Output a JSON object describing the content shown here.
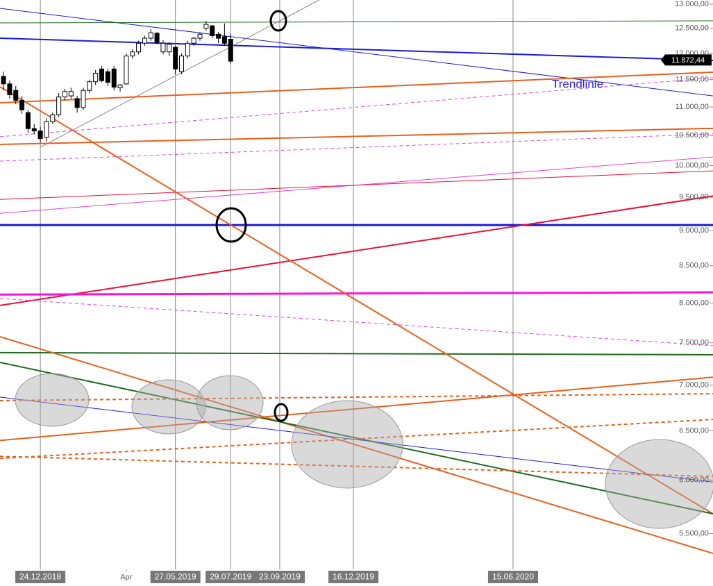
{
  "chart_data": {
    "type": "candlestick",
    "log_scale": true,
    "annotation": "Trendlinie",
    "last_price": {
      "value": 11872.44,
      "label": "11.872,44"
    },
    "xlim": [
      "2018-11-08",
      "2021-01-29"
    ],
    "ylim": [
      5190,
      13088
    ],
    "yticks": [
      {
        "value": 5500,
        "label": "5.500,00"
      },
      {
        "value": 6000,
        "label": "6.000,00"
      },
      {
        "value": 6500,
        "label": "6.500,00"
      },
      {
        "value": 7000,
        "label": "7.000,00"
      },
      {
        "value": 7500,
        "label": "7.500,00"
      },
      {
        "value": 8000,
        "label": "8.000,00"
      },
      {
        "value": 8500,
        "label": "8.500,00"
      },
      {
        "value": 9000,
        "label": "9.000,00"
      },
      {
        "value": 9500,
        "label": "9.500,00"
      },
      {
        "value": 10000,
        "label": "10.000,00"
      },
      {
        "value": 10500,
        "label": "10.500,00"
      },
      {
        "value": 11000,
        "label": "11.000,00"
      },
      {
        "value": 11500,
        "label": "11.500,00"
      },
      {
        "value": 12000,
        "label": "12.000,00"
      },
      {
        "value": 12500,
        "label": "12.500,00"
      },
      {
        "value": 13000,
        "label": "13.000,00"
      }
    ],
    "xticks": [
      {
        "value": "2018-12-24",
        "label": "24.12.2018"
      },
      {
        "value": "2019-05-27",
        "label": "27.05.2019"
      },
      {
        "value": "2019-07-29",
        "label": "29.07.2019"
      },
      {
        "value": "2019-09-23",
        "label": "23.09.2019"
      },
      {
        "value": "2019-12-16",
        "label": "16.12.2019"
      },
      {
        "value": "2020-06-15",
        "label": "15.06.2020"
      }
    ],
    "xticks_minor": [
      {
        "value": "2019-04-01",
        "label": "Apr"
      }
    ],
    "x": [
      "2018-11-12",
      "2018-11-19",
      "2018-11-26",
      "2018-12-03",
      "2018-12-10",
      "2018-12-17",
      "2018-12-24",
      "2018-12-31",
      "2019-01-07",
      "2019-01-14",
      "2019-01-21",
      "2019-01-28",
      "2019-02-04",
      "2019-02-11",
      "2019-02-18",
      "2019-02-25",
      "2019-03-04",
      "2019-03-11",
      "2019-03-18",
      "2019-03-25",
      "2019-04-01",
      "2019-04-08",
      "2019-04-15",
      "2019-04-22",
      "2019-04-29",
      "2019-05-06",
      "2019-05-13",
      "2019-05-20",
      "2019-05-27",
      "2019-06-03",
      "2019-06-10",
      "2019-06-17",
      "2019-06-24",
      "2019-07-01",
      "2019-07-08",
      "2019-07-15",
      "2019-07-22",
      "2019-07-29"
    ],
    "open": [
      11560,
      11420,
      11300,
      11120,
      10900,
      10620,
      10580,
      10470,
      10740,
      10860,
      11180,
      11200,
      11150,
      10990,
      11300,
      11460,
      11700,
      11650,
      11700,
      11350,
      11420,
      11950,
      12030,
      12200,
      12300,
      12400,
      12030,
      12030,
      12120,
      11650,
      11950,
      12200,
      12300,
      12500,
      12550,
      12380,
      12330,
      12280
    ],
    "high": [
      11650,
      11480,
      11380,
      11200,
      10950,
      10700,
      10650,
      10800,
      10900,
      11250,
      11330,
      11350,
      11200,
      11350,
      11500,
      11680,
      11760,
      11700,
      11760,
      11420,
      12000,
      12080,
      12250,
      12350,
      12480,
      12420,
      12260,
      12220,
      12150,
      12000,
      12250,
      12330,
      12420,
      12650,
      12570,
      12420,
      12600,
      12400
    ],
    "low": [
      11300,
      11150,
      11050,
      10880,
      10550,
      10520,
      10380,
      10400,
      10700,
      10820,
      11120,
      11150,
      10900,
      10950,
      11250,
      11400,
      11450,
      11380,
      11300,
      11280,
      11400,
      11900,
      11980,
      12150,
      12250,
      12180,
      11980,
      11950,
      11600,
      11600,
      11900,
      12150,
      12250,
      12450,
      12300,
      12200,
      12150,
      11800
    ],
    "close": [
      11420,
      11220,
      11120,
      10950,
      10620,
      10580,
      10450,
      10740,
      10860,
      11180,
      11280,
      11280,
      10990,
      11300,
      11460,
      11620,
      11480,
      11450,
      11360,
      11400,
      11950,
      12030,
      12200,
      12300,
      12410,
      12220,
      12200,
      12180,
      11700,
      11950,
      12200,
      12300,
      12380,
      12580,
      12350,
      12300,
      12200,
      11850
    ],
    "up_color": "#ffffff",
    "down_color": "#000000",
    "lines": [
      {
        "color": "#1a1adb",
        "width": 1,
        "dash": false,
        "x": [
          "2018-11-08",
          "2021-01-29"
        ],
        "y": [
          12912,
          11200
        ]
      },
      {
        "color": "#1a1adb",
        "width": 2,
        "dash": false,
        "x": [
          "2018-11-08",
          "2021-01-29"
        ],
        "y": [
          12300,
          11865
        ]
      },
      {
        "color": "#1e6b1e",
        "width": 1,
        "dash": false,
        "x": [
          "2018-11-08",
          "2021-01-29"
        ],
        "y": [
          12610,
          12653
        ]
      },
      {
        "color": "#888888",
        "width": 1,
        "dash": false,
        "x": [
          "2018-12-24",
          "2019-11-07"
        ],
        "y": [
          10304,
          13088
        ]
      },
      {
        "color": "#e8601c",
        "width": 2,
        "dash": false,
        "x": [
          "2018-11-08",
          "2021-01-29"
        ],
        "y": [
          11076,
          11640
        ]
      },
      {
        "color": "#e040e0",
        "width": 1,
        "dash": true,
        "x": [
          "2018-11-08",
          "2021-01-29"
        ],
        "y": [
          10482,
          11536
        ]
      },
      {
        "color": "#e8601c",
        "width": 2,
        "dash": false,
        "x": [
          "2018-11-08",
          "2021-01-29"
        ],
        "y": [
          10351,
          10625
        ]
      },
      {
        "color": "#e040e0",
        "width": 1,
        "dash": true,
        "x": [
          "2018-11-08",
          "2021-01-29"
        ],
        "y": [
          10074,
          10530
        ]
      },
      {
        "color": "#e040e0",
        "width": 1,
        "dash": false,
        "x": [
          "2018-11-08",
          "2021-01-29"
        ],
        "y": [
          9255,
          10141
        ]
      },
      {
        "color": "#e8103a",
        "width": 1,
        "dash": false,
        "x": [
          "2018-11-08",
          "2021-01-29"
        ],
        "y": [
          9466,
          9915
        ]
      },
      {
        "color": "#1a1adb",
        "width": 3,
        "dash": false,
        "x": [
          "2018-11-08",
          "2021-01-29"
        ],
        "y": [
          9080,
          9080
        ]
      },
      {
        "color": "#e8103a",
        "width": 2,
        "dash": false,
        "x": [
          "2018-11-08",
          "2021-01-29"
        ],
        "y": [
          7969,
          9519
        ]
      },
      {
        "color": "#ff10e0",
        "width": 3,
        "dash": false,
        "x": [
          "2018-11-08",
          "2021-01-29"
        ],
        "y": [
          8110,
          8140
        ]
      },
      {
        "color": "#e040e0",
        "width": 1,
        "dash": true,
        "x": [
          "2018-11-08",
          "2021-01-29"
        ],
        "y": [
          8059,
          7464
        ]
      },
      {
        "color": "#1e6b1e",
        "width": 2,
        "dash": false,
        "x": [
          "2018-11-08",
          "2021-01-29"
        ],
        "y": [
          7380,
          7355
        ]
      },
      {
        "color": "#e8601c",
        "width": 2,
        "dash": false,
        "x": [
          "2018-11-08",
          "2021-01-29"
        ],
        "y": [
          11367,
          5680
        ]
      },
      {
        "color": "#e8601c",
        "width": 2,
        "dash": false,
        "x": [
          "2018-11-08",
          "2021-01-29"
        ],
        "y": [
          7574,
          5326
        ]
      },
      {
        "color": "#1e6b1e",
        "width": 2,
        "dash": false,
        "x": [
          "2018-11-08",
          "2021-01-29"
        ],
        "y": [
          7264,
          5680
        ]
      },
      {
        "color": "#1a1adb",
        "width": 1,
        "dash": false,
        "x": [
          "2018-11-08",
          "2021-01-29"
        ],
        "y": [
          6865,
          5981
        ]
      },
      {
        "color": "#e8601c",
        "width": 2,
        "dash": false,
        "x": [
          "2018-11-08",
          "2021-01-29"
        ],
        "y": [
          6399,
          7092
        ]
      },
      {
        "color": "#e8601c",
        "width": 2,
        "dash": true,
        "x": [
          "2018-11-08",
          "2021-01-29"
        ],
        "y": [
          6827,
          6904
        ]
      },
      {
        "color": "#e8601c",
        "width": 2,
        "dash": true,
        "x": [
          "2018-11-08",
          "2021-01-29"
        ],
        "y": [
          6215,
          6621
        ]
      },
      {
        "color": "#e8601c",
        "width": 2,
        "dash": true,
        "x": [
          "2018-11-08",
          "2021-01-29"
        ],
        "y": [
          6236,
          6036
        ]
      }
    ]
  }
}
